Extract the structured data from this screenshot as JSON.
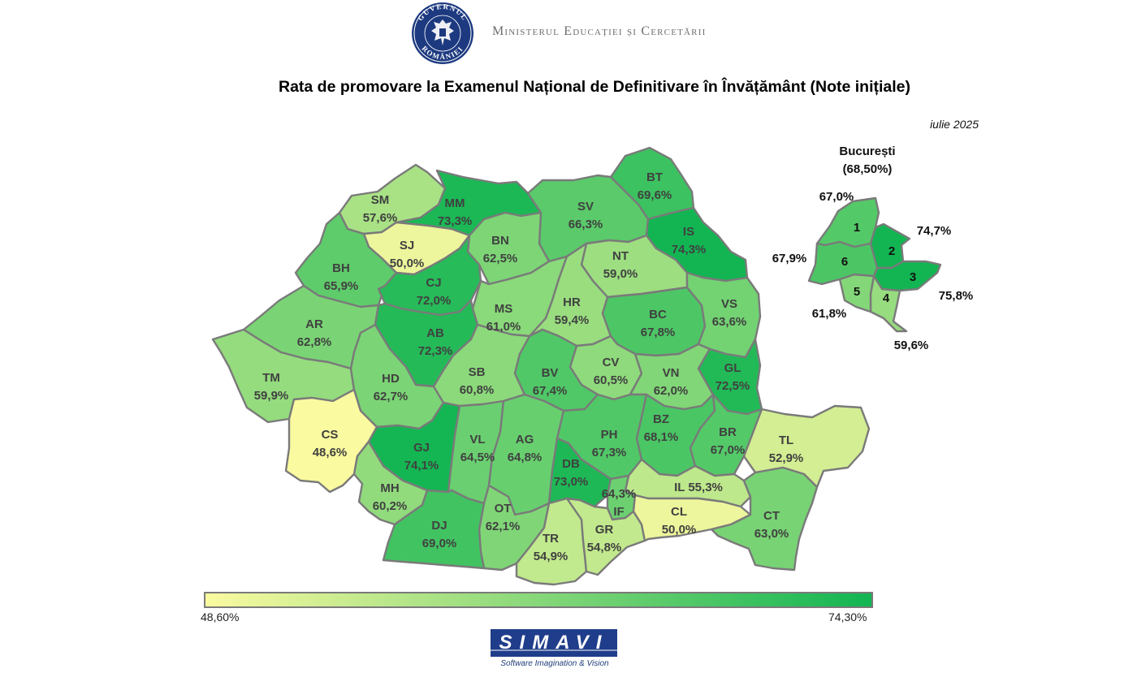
{
  "header": {
    "seal_text": "GUVERNUL ROMÂNIEI",
    "ministry": "Ministerul Educației și Cercetării",
    "title": "Rata de promovare la Examenul Național de Definitivare în Învățământ (Note inițiale)",
    "date": "iulie 2025"
  },
  "colors": {
    "min": "#fafaa0",
    "max": "#12b552",
    "border": "#7a7a7a"
  },
  "counties": [
    {
      "code": "SM",
      "label": "57,6%",
      "value": 57.6
    },
    {
      "code": "MM",
      "label": "73,3%",
      "value": 73.3
    },
    {
      "code": "BT",
      "label": "69,6%",
      "value": 69.6
    },
    {
      "code": "SV",
      "label": "66,3%",
      "value": 66.3
    },
    {
      "code": "SJ",
      "label": "50,0%",
      "value": 50.0
    },
    {
      "code": "BN",
      "label": "62,5%",
      "value": 62.5
    },
    {
      "code": "IS",
      "label": "74,3%",
      "value": 74.3
    },
    {
      "code": "BH",
      "label": "65,9%",
      "value": 65.9
    },
    {
      "code": "CJ",
      "label": "72,0%",
      "value": 72.0
    },
    {
      "code": "NT",
      "label": "59,0%",
      "value": 59.0
    },
    {
      "code": "MS",
      "label": "61,0%",
      "value": 61.0
    },
    {
      "code": "HR",
      "label": "59,4%",
      "value": 59.4
    },
    {
      "code": "AR",
      "label": "62,8%",
      "value": 62.8
    },
    {
      "code": "AB",
      "label": "72,3%",
      "value": 72.3
    },
    {
      "code": "BC",
      "label": "67,8%",
      "value": 67.8
    },
    {
      "code": "VS",
      "label": "63,6%",
      "value": 63.6
    },
    {
      "code": "CV",
      "label": "60,5%",
      "value": 60.5
    },
    {
      "code": "TM",
      "label": "59,9%",
      "value": 59.9
    },
    {
      "code": "HD",
      "label": "62,7%",
      "value": 62.7
    },
    {
      "code": "SB",
      "label": "60,8%",
      "value": 60.8
    },
    {
      "code": "BV",
      "label": "67,4%",
      "value": 67.4
    },
    {
      "code": "VN",
      "label": "62,0%",
      "value": 62.0
    },
    {
      "code": "GL",
      "label": "72,5%",
      "value": 72.5
    },
    {
      "code": "CS",
      "label": "48,6%",
      "value": 48.6
    },
    {
      "code": "GJ",
      "label": "74,1%",
      "value": 74.1
    },
    {
      "code": "VL",
      "label": "64,5%",
      "value": 64.5
    },
    {
      "code": "AG",
      "label": "64,8%",
      "value": 64.8
    },
    {
      "code": "PH",
      "label": "67,3%",
      "value": 67.3
    },
    {
      "code": "BZ",
      "label": "68,1%",
      "value": 68.1
    },
    {
      "code": "BR",
      "label": "67,0%",
      "value": 67.0
    },
    {
      "code": "TL",
      "label": "52,9%",
      "value": 52.9
    },
    {
      "code": "DB",
      "label": "73,0%",
      "value": 73.0
    },
    {
      "code": "MH",
      "label": "60,2%",
      "value": 60.2
    },
    {
      "code": "IL",
      "label": "55,3%",
      "value": 55.3
    },
    {
      "code": "IF",
      "label": "64,3%",
      "value": 64.3
    },
    {
      "code": "OT",
      "label": "62,1%",
      "value": 62.1
    },
    {
      "code": "DJ",
      "label": "69,0%",
      "value": 69.0
    },
    {
      "code": "TR",
      "label": "54,9%",
      "value": 54.9
    },
    {
      "code": "GR",
      "label": "54,8%",
      "value": 54.8
    },
    {
      "code": "CL",
      "label": "50,0%",
      "value": 50.0
    },
    {
      "code": "CT",
      "label": "63,0%",
      "value": 63.0
    }
  ],
  "bucharest": {
    "title": "București",
    "value": "(68,50%)",
    "sectors": [
      {
        "number": "1",
        "label": "67,0%",
        "value": 67.0
      },
      {
        "number": "2",
        "label": "74,7%",
        "value": 74.7
      },
      {
        "number": "3",
        "label": "75,8%",
        "value": 75.8
      },
      {
        "number": "4",
        "label": "59,6%",
        "value": 59.6
      },
      {
        "number": "5",
        "label": "61,8%",
        "value": 61.8
      },
      {
        "number": "6",
        "label": "67,9%",
        "value": 67.9
      }
    ]
  },
  "legend": {
    "min_label": "48,60%",
    "max_label": "74,30%",
    "min": 48.6,
    "max": 74.3
  },
  "footer": {
    "logo_text": "SIMAVI",
    "tagline": "Software Imagination & Vision"
  }
}
